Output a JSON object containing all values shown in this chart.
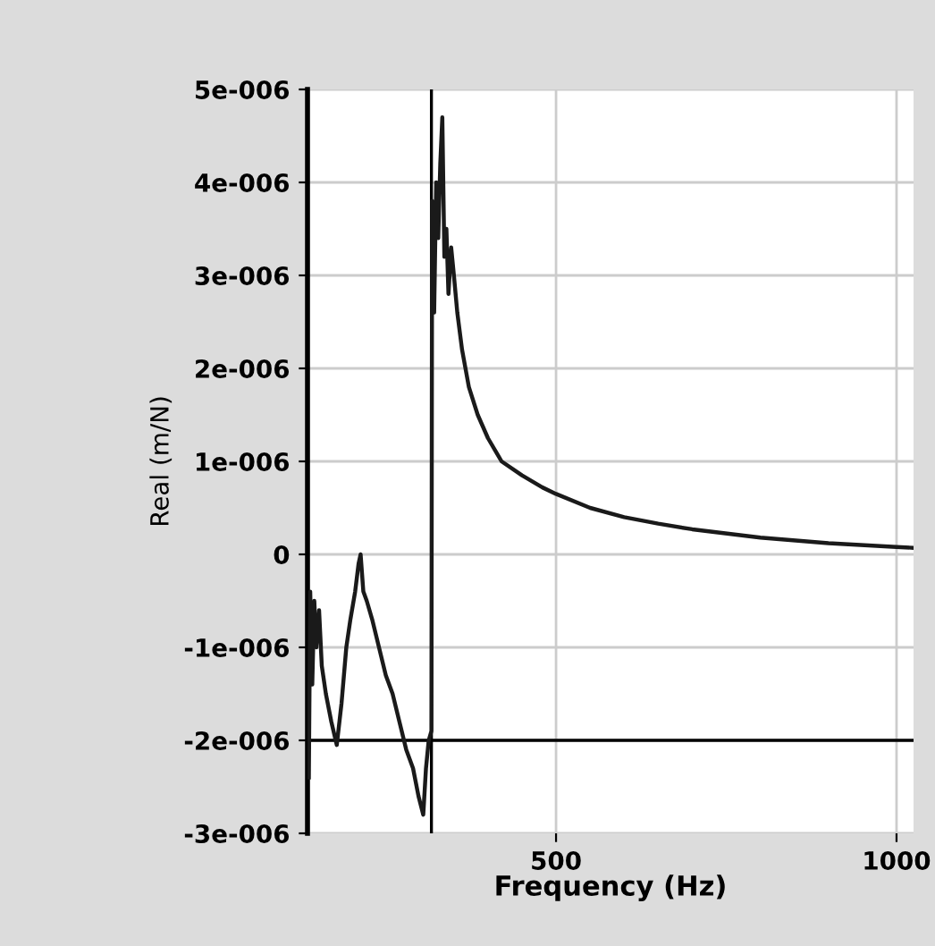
{
  "chart_data": {
    "type": "line",
    "xlabel": "Frequency (Hz)",
    "ylabel": "Real (m/N)",
    "xlim": [
      135,
      1025
    ],
    "xticks": [
      500,
      1000
    ],
    "ylim": [
      -3e-06,
      5e-06
    ],
    "yticks": [
      {
        "value": -3e-06,
        "label": "-3e-006"
      },
      {
        "value": -2e-06,
        "label": "-2e-006"
      },
      {
        "value": -1e-06,
        "label": "-1e-006"
      },
      0,
      {
        "value": 1e-06,
        "label": "1e-006"
      },
      {
        "value": 2e-06,
        "label": "2e-006"
      },
      {
        "value": 3e-06,
        "label": "3e-006"
      },
      {
        "value": 4e-06,
        "label": "4e-006"
      },
      {
        "value": 5e-06,
        "label": "5e-006"
      }
    ],
    "grid": true,
    "marker": "none",
    "line_style": "solid",
    "ref_lines": [
      {
        "axis": "y",
        "value": -2e-06,
        "color": "#000000"
      },
      {
        "axis": "x",
        "value": 317,
        "color": "#000000"
      }
    ],
    "series": [
      {
        "color": "#1a1a1a",
        "x": [
          137,
          139,
          142,
          145,
          148,
          152,
          156,
          162,
          170,
          178,
          185,
          192,
          198,
          205,
          210,
          213,
          217,
          222,
          230,
          240,
          250,
          260,
          270,
          280,
          290,
          298,
          305,
          309,
          313,
          317,
          318,
          321,
          324,
          327,
          330,
          333,
          336,
          339,
          342,
          346,
          350,
          355,
          362,
          372,
          385,
          400,
          420,
          450,
          480,
          500,
          550,
          600,
          650,
          700,
          800,
          900,
          1000,
          1025
        ],
        "values": [
          -2.4e-06,
          -4e-07,
          -1.4e-06,
          -5e-07,
          -1e-06,
          -6e-07,
          -1.2e-06,
          -1.5e-06,
          -1.8e-06,
          -2.05e-06,
          -1.6e-06,
          -1e-06,
          -7e-07,
          -4e-07,
          -1e-07,
          0.0,
          -4e-07,
          -5e-07,
          -7e-07,
          -1e-06,
          -1.3e-06,
          -1.5e-06,
          -1.8e-06,
          -2.1e-06,
          -2.3e-06,
          -2.6e-06,
          -2.8e-06,
          -2.3e-06,
          -2e-06,
          -1.9e-06,
          3.8e-06,
          2.6e-06,
          4e-06,
          3.4e-06,
          4.2e-06,
          4.7e-06,
          3.2e-06,
          3.5e-06,
          2.8e-06,
          3.3e-06,
          3e-06,
          2.6e-06,
          2.2e-06,
          1.8e-06,
          1.5e-06,
          1.25e-06,
          1e-06,
          8.5e-07,
          7.2e-07,
          6.5e-07,
          5e-07,
          4e-07,
          3.3e-07,
          2.7e-07,
          1.8e-07,
          1.2e-07,
          8e-08,
          7e-08
        ]
      }
    ]
  }
}
